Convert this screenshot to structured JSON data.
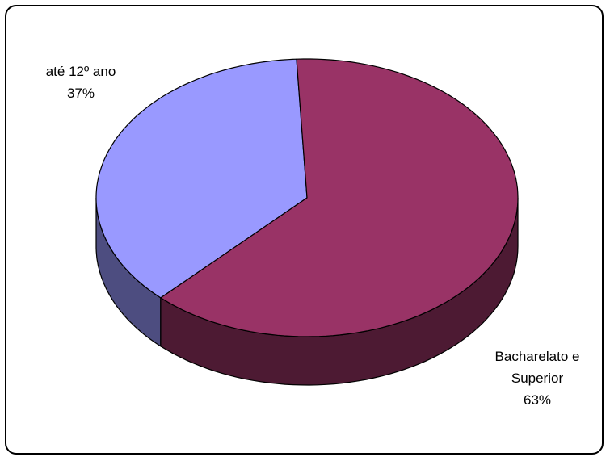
{
  "chart_data": {
    "type": "pie",
    "style": "3d",
    "title": "",
    "slices": [
      {
        "label_lines": [
          "até 12º ano"
        ],
        "percent_label": "37%",
        "value": 37,
        "color": "#9999ff",
        "side_color": "#4d4d80"
      },
      {
        "label_lines": [
          "Bacharelato e",
          "Superior"
        ],
        "percent_label": "63%",
        "value": 63,
        "color": "#993366",
        "side_color": "#4d1a33"
      }
    ],
    "legend": false
  }
}
